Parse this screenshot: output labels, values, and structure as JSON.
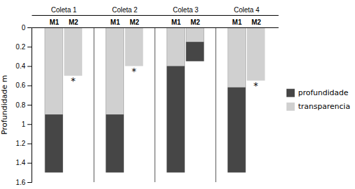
{
  "chart_data": {
    "type": "bar",
    "y_label": "Profundidade m",
    "categories": [
      "M1",
      "M2",
      "M1",
      "M2",
      "M1",
      "M2",
      "M1",
      "M2"
    ],
    "groups": [
      "Coleta 1",
      "Coleta 2",
      "Coleta 3",
      "Coleta 4"
    ],
    "series": [
      {
        "name": "profundidade",
        "color": "#464646",
        "values": [
          1.5,
          0.0,
          1.5,
          0.0,
          1.5,
          0.35,
          1.5,
          0.0
        ]
      },
      {
        "name": "transparencia",
        "color": "#d0d0d0",
        "values": [
          0.9,
          0.5,
          0.9,
          0.4,
          0.4,
          0.15,
          0.62,
          0.55
        ]
      }
    ],
    "annotations": [
      {
        "index": 1,
        "text": "*"
      },
      {
        "index": 3,
        "text": "*"
      },
      {
        "index": 7,
        "text": "*"
      }
    ],
    "ylim": [
      1.6,
      0.0
    ],
    "yticks": [
      0,
      0.2,
      0.4,
      0.6,
      0.8,
      1.0,
      1.2,
      1.4,
      1.6
    ]
  }
}
